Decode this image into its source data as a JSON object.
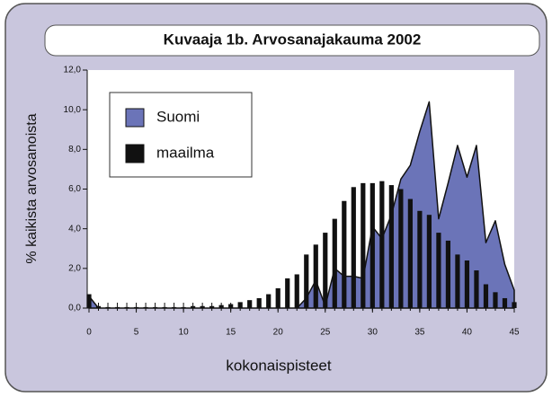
{
  "chart_data": {
    "type": "bar-area",
    "title": "Kuvaaja 1b. Arvosanajakauma 2002",
    "xlabel": "kokonaispisteet",
    "ylabel": "% kaikista arvosanoista",
    "x": [
      0,
      1,
      2,
      3,
      4,
      5,
      6,
      7,
      8,
      9,
      10,
      11,
      12,
      13,
      14,
      15,
      16,
      17,
      18,
      19,
      20,
      21,
      22,
      23,
      24,
      25,
      26,
      27,
      28,
      29,
      30,
      31,
      32,
      33,
      34,
      35,
      36,
      37,
      38,
      39,
      40,
      41,
      42,
      43,
      44,
      45
    ],
    "series": [
      {
        "name": "Suomi",
        "color": "#6b74b8",
        "kind": "area",
        "values": [
          0.6,
          0,
          0,
          0,
          0,
          0,
          0,
          0,
          0,
          0,
          0,
          0,
          0,
          0,
          0,
          0,
          0,
          0,
          0,
          0,
          0,
          0,
          0,
          0.5,
          1.4,
          0.1,
          2.0,
          1.6,
          1.6,
          1.5,
          4.1,
          3.5,
          4.7,
          6.5,
          7.2,
          8.9,
          10.4,
          4.5,
          6.3,
          8.2,
          6.6,
          8.2,
          3.3,
          4.4,
          2.2,
          0.9
        ]
      },
      {
        "name": "maailma",
        "color": "#111111",
        "kind": "bar",
        "values": [
          0.7,
          0.1,
          0.05,
          0.05,
          0.05,
          0.05,
          0.05,
          0.05,
          0.05,
          0.05,
          0.05,
          0.1,
          0.1,
          0.1,
          0.15,
          0.2,
          0.3,
          0.4,
          0.5,
          0.7,
          1.0,
          1.5,
          1.7,
          2.7,
          3.2,
          3.8,
          4.5,
          5.4,
          6.1,
          6.3,
          6.3,
          6.4,
          6.2,
          6.0,
          5.5,
          4.9,
          4.7,
          3.8,
          3.4,
          2.7,
          2.4,
          1.9,
          1.2,
          0.8,
          0.5,
          0.3
        ]
      }
    ],
    "xlim": [
      0,
      45
    ],
    "xticks": [
      0,
      5,
      10,
      15,
      20,
      25,
      30,
      35,
      40,
      45
    ],
    "ylim": [
      0,
      12
    ],
    "yticks": [
      {
        "value": 0,
        "label": "0,0"
      },
      {
        "value": 2,
        "label": "2,0"
      },
      {
        "value": 4,
        "label": "4,0"
      },
      {
        "value": 6,
        "label": "6,0"
      },
      {
        "value": 8,
        "label": "8,0"
      },
      {
        "value": 10,
        "label": "10,0"
      },
      {
        "value": 12,
        "label": "12,0"
      }
    ],
    "legend": "upper left",
    "grid": false
  }
}
